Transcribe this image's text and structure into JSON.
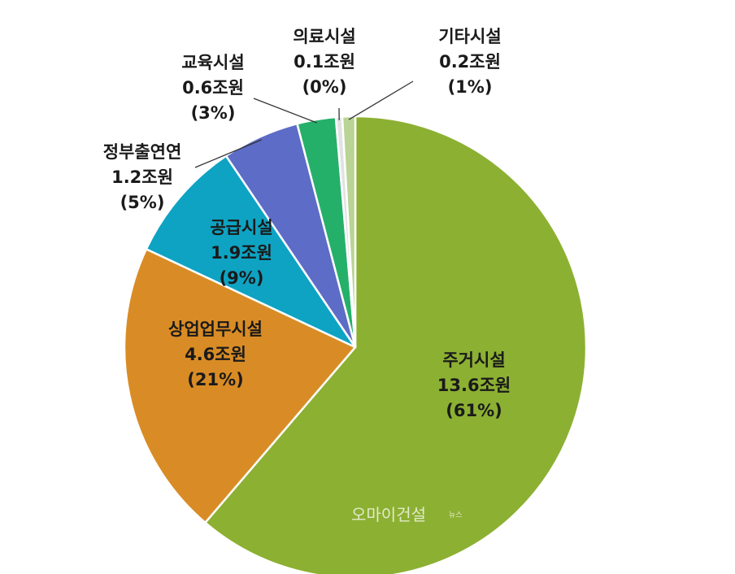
{
  "chart_data": {
    "type": "pie",
    "title": "",
    "slices": [
      {
        "name": "주거시설",
        "amount": "13.6조원",
        "percent_label": "(61%)",
        "value": 13.6,
        "color": "#8cb032"
      },
      {
        "name": "상업업무시설",
        "amount": "4.6조원",
        "percent_label": "(21%)",
        "value": 4.6,
        "color": "#d98c25"
      },
      {
        "name": "공급시설",
        "amount": "1.9조원",
        "percent_label": "(9%)",
        "value": 1.9,
        "color": "#0ea3c3"
      },
      {
        "name": "정부출연연",
        "amount": "1.2조원",
        "percent_label": "(5%)",
        "value": 1.2,
        "color": "#5d6cc6"
      },
      {
        "name": "교육시설",
        "amount": "0.6조원",
        "percent_label": "(3%)",
        "value": 0.6,
        "color": "#25b06a"
      },
      {
        "name": "의료시설",
        "amount": "0.1조원",
        "percent_label": "(0%)",
        "value": 0.1,
        "color": "#e2e2e2"
      },
      {
        "name": "기타시설",
        "amount": "0.2조원",
        "percent_label": "(1%)",
        "value": 0.2,
        "color": "#b9d494"
      }
    ]
  },
  "watermark": "오마이건설",
  "watermark_suffix": "뉴스"
}
